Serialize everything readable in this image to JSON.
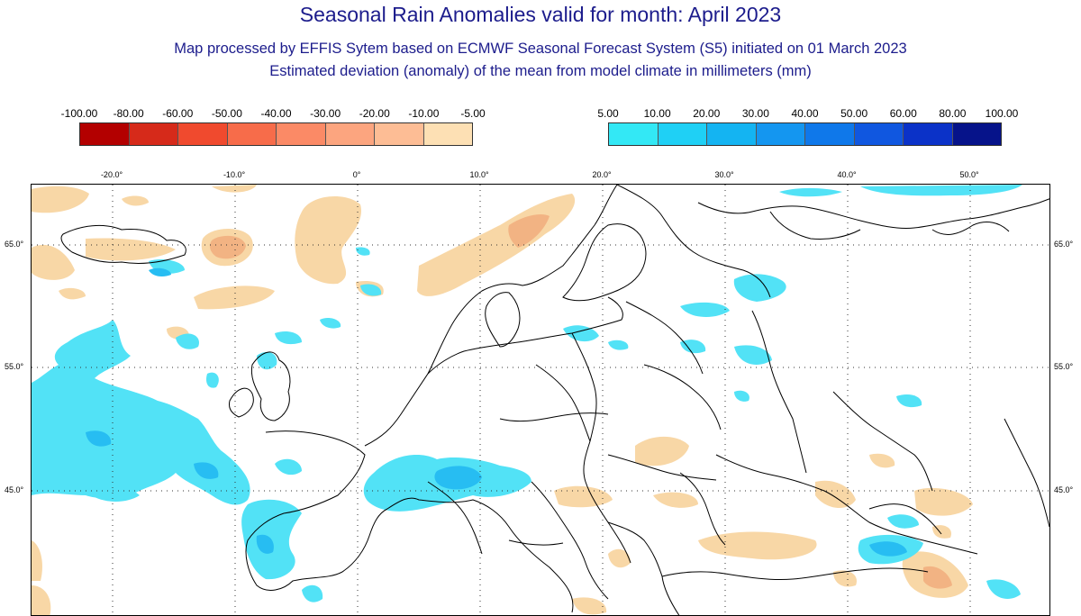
{
  "header": {
    "title": "Seasonal Rain Anomalies valid for month: April 2023",
    "subtitle1": "Map processed by EFFIS Sytem based on ECMWF Seasonal Forecast System (S5) initiated on 01 March 2023",
    "subtitle2": "Estimated deviation (anomaly) of the mean from model climate in millimeters (mm)"
  },
  "legend_negative": {
    "labels": [
      "-100.00",
      "-80.00",
      "-60.00",
      "-50.00",
      "-40.00",
      "-30.00",
      "-20.00",
      "-10.00",
      "-5.00"
    ],
    "colors": [
      "#b30000",
      "#d62a1a",
      "#f04a2e",
      "#f76c4a",
      "#fb8a66",
      "#fca57f",
      "#fdbd95",
      "#fde0b4"
    ]
  },
  "legend_positive": {
    "labels": [
      "5.00",
      "10.00",
      "20.00",
      "30.00",
      "40.00",
      "50.00",
      "60.00",
      "80.00",
      "100.00"
    ],
    "colors": [
      "#33e8f5",
      "#1fd0f5",
      "#14b4f2",
      "#1496f0",
      "#0f78ea",
      "#1057e0",
      "#0b32c8",
      "#06138a"
    ]
  },
  "map": {
    "longitude_labels": [
      "-20.0°",
      "-10.0°",
      "0°",
      "10.0°",
      "20.0°",
      "30.0°",
      "40.0°",
      "50.0°"
    ],
    "latitude_labels": [
      "65.0°",
      "55.0°",
      "45.0°"
    ],
    "colors": {
      "dry": "#f8d7a6",
      "dry_strong": "#f2b383",
      "wet": "#52e2f6",
      "wet_strong": "#27bdf2",
      "border": "#000000",
      "grid": "#333333"
    }
  }
}
